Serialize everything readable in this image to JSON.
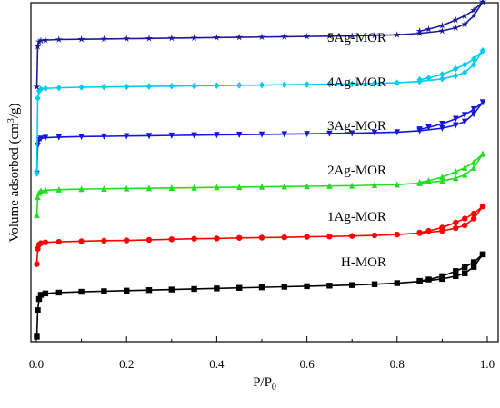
{
  "chart_data": {
    "type": "line",
    "title": "",
    "xlabel": "P/P",
    "xlabel_sub": "0",
    "ylabel": "Volume adsorbed (cm",
    "ylabel_sup": "3",
    "ylabel_tail": "/g)",
    "xlim": [
      0,
      1.0
    ],
    "xticks": [
      "0.0",
      "0.2",
      "0.4",
      "0.6",
      "0.8",
      "1.0"
    ],
    "yticks_shown": false,
    "grid": false,
    "series": [
      {
        "name": "H-MOR",
        "color": "#000000",
        "marker": "square",
        "adsorption": [
          [
            0.001,
            0.005
          ],
          [
            0.003,
            0.1
          ],
          [
            0.006,
            0.14
          ],
          [
            0.01,
            0.155
          ],
          [
            0.02,
            0.16
          ],
          [
            0.05,
            0.163
          ],
          [
            0.1,
            0.166
          ],
          [
            0.15,
            0.168
          ],
          [
            0.2,
            0.17
          ],
          [
            0.25,
            0.172
          ],
          [
            0.3,
            0.174
          ],
          [
            0.35,
            0.176
          ],
          [
            0.4,
            0.178
          ],
          [
            0.45,
            0.18
          ],
          [
            0.5,
            0.182
          ],
          [
            0.55,
            0.184
          ],
          [
            0.6,
            0.186
          ],
          [
            0.65,
            0.188
          ],
          [
            0.7,
            0.19
          ],
          [
            0.75,
            0.193
          ],
          [
            0.8,
            0.197
          ],
          [
            0.85,
            0.203
          ],
          [
            0.9,
            0.212
          ],
          [
            0.93,
            0.222
          ],
          [
            0.95,
            0.232
          ],
          [
            0.97,
            0.255
          ],
          [
            0.99,
            0.3
          ]
        ],
        "desorption": [
          [
            0.99,
            0.3
          ],
          [
            0.97,
            0.272
          ],
          [
            0.95,
            0.254
          ],
          [
            0.93,
            0.24
          ],
          [
            0.9,
            0.222
          ],
          [
            0.87,
            0.21
          ],
          [
            0.85,
            0.205
          ]
        ]
      },
      {
        "name": "1Ag-MOR",
        "color": "#ff0000",
        "marker": "circle",
        "adsorption": [
          [
            0.001,
            0.265
          ],
          [
            0.003,
            0.32
          ],
          [
            0.006,
            0.335
          ],
          [
            0.01,
            0.34
          ],
          [
            0.02,
            0.343
          ],
          [
            0.05,
            0.345
          ],
          [
            0.1,
            0.347
          ],
          [
            0.15,
            0.349
          ],
          [
            0.2,
            0.35
          ],
          [
            0.25,
            0.352
          ],
          [
            0.3,
            0.354
          ],
          [
            0.35,
            0.356
          ],
          [
            0.4,
            0.357
          ],
          [
            0.45,
            0.359
          ],
          [
            0.5,
            0.36
          ],
          [
            0.55,
            0.361
          ],
          [
            0.6,
            0.363
          ],
          [
            0.65,
            0.364
          ],
          [
            0.7,
            0.366
          ],
          [
            0.75,
            0.368
          ],
          [
            0.8,
            0.371
          ],
          [
            0.85,
            0.376
          ],
          [
            0.9,
            0.384
          ],
          [
            0.93,
            0.394
          ],
          [
            0.95,
            0.404
          ],
          [
            0.97,
            0.428
          ],
          [
            0.99,
            0.472
          ]
        ],
        "desorption": [
          [
            0.99,
            0.472
          ],
          [
            0.97,
            0.446
          ],
          [
            0.95,
            0.428
          ],
          [
            0.93,
            0.414
          ],
          [
            0.9,
            0.396
          ],
          [
            0.87,
            0.384
          ],
          [
            0.85,
            0.378
          ]
        ]
      },
      {
        "name": "2Ag-MOR",
        "color": "#22dd22",
        "marker": "triangle-up",
        "adsorption": [
          [
            0.001,
            0.44
          ],
          [
            0.003,
            0.505
          ],
          [
            0.006,
            0.52
          ],
          [
            0.01,
            0.527
          ],
          [
            0.02,
            0.53
          ],
          [
            0.05,
            0.532
          ],
          [
            0.1,
            0.534
          ],
          [
            0.15,
            0.535
          ],
          [
            0.2,
            0.536
          ],
          [
            0.25,
            0.537
          ],
          [
            0.3,
            0.538
          ],
          [
            0.35,
            0.539
          ],
          [
            0.4,
            0.54
          ],
          [
            0.45,
            0.541
          ],
          [
            0.5,
            0.542
          ],
          [
            0.55,
            0.543
          ],
          [
            0.6,
            0.544
          ],
          [
            0.65,
            0.545
          ],
          [
            0.7,
            0.546
          ],
          [
            0.75,
            0.548
          ],
          [
            0.8,
            0.55
          ],
          [
            0.85,
            0.555
          ],
          [
            0.9,
            0.563
          ],
          [
            0.93,
            0.573
          ],
          [
            0.95,
            0.585
          ],
          [
            0.97,
            0.61
          ],
          [
            0.99,
            0.66
          ]
        ],
        "desorption": [
          [
            0.99,
            0.66
          ],
          [
            0.97,
            0.63
          ],
          [
            0.95,
            0.61
          ],
          [
            0.93,
            0.596
          ],
          [
            0.9,
            0.577
          ],
          [
            0.87,
            0.564
          ],
          [
            0.85,
            0.558
          ]
        ]
      },
      {
        "name": "3Ag-MOR",
        "color": "#1515e0",
        "marker": "triangle-down",
        "adsorption": [
          [
            0.001,
            0.59
          ],
          [
            0.003,
            0.69
          ],
          [
            0.006,
            0.71
          ],
          [
            0.01,
            0.715
          ],
          [
            0.02,
            0.718
          ],
          [
            0.05,
            0.72
          ],
          [
            0.1,
            0.722
          ],
          [
            0.15,
            0.723
          ],
          [
            0.2,
            0.724
          ],
          [
            0.25,
            0.725
          ],
          [
            0.3,
            0.726
          ],
          [
            0.35,
            0.727
          ],
          [
            0.4,
            0.728
          ],
          [
            0.45,
            0.729
          ],
          [
            0.5,
            0.73
          ],
          [
            0.55,
            0.731
          ],
          [
            0.6,
            0.732
          ],
          [
            0.65,
            0.733
          ],
          [
            0.7,
            0.734
          ],
          [
            0.75,
            0.736
          ],
          [
            0.8,
            0.738
          ],
          [
            0.85,
            0.743
          ],
          [
            0.9,
            0.752
          ],
          [
            0.93,
            0.763
          ],
          [
            0.95,
            0.776
          ],
          [
            0.97,
            0.803
          ],
          [
            0.99,
            0.845
          ]
        ],
        "desorption": [
          [
            0.99,
            0.845
          ],
          [
            0.97,
            0.82
          ],
          [
            0.95,
            0.8
          ],
          [
            0.93,
            0.786
          ],
          [
            0.9,
            0.768
          ],
          [
            0.87,
            0.755
          ],
          [
            0.85,
            0.748
          ]
        ]
      },
      {
        "name": "4Ag-MOR",
        "color": "#00ccee",
        "marker": "diamond",
        "adsorption": [
          [
            0.001,
            0.59
          ],
          [
            0.003,
            0.86
          ],
          [
            0.006,
            0.885
          ],
          [
            0.01,
            0.892
          ],
          [
            0.02,
            0.895
          ],
          [
            0.05,
            0.897
          ],
          [
            0.1,
            0.899
          ],
          [
            0.15,
            0.9
          ],
          [
            0.2,
            0.901
          ],
          [
            0.25,
            0.902
          ],
          [
            0.3,
            0.903
          ],
          [
            0.35,
            0.904
          ],
          [
            0.4,
            0.905
          ],
          [
            0.45,
            0.906
          ],
          [
            0.5,
            0.907
          ],
          [
            0.55,
            0.908
          ],
          [
            0.6,
            0.909
          ],
          [
            0.65,
            0.91
          ],
          [
            0.7,
            0.911
          ],
          [
            0.75,
            0.913
          ],
          [
            0.8,
            0.915
          ],
          [
            0.85,
            0.92
          ],
          [
            0.9,
            0.929
          ],
          [
            0.93,
            0.94
          ],
          [
            0.95,
            0.952
          ],
          [
            0.97,
            0.98
          ],
          [
            0.99,
            1.03
          ]
        ],
        "desorption": [
          [
            0.99,
            1.03
          ],
          [
            0.97,
            1.0
          ],
          [
            0.95,
            0.98
          ],
          [
            0.93,
            0.965
          ],
          [
            0.9,
            0.945
          ],
          [
            0.87,
            0.932
          ],
          [
            0.85,
            0.926
          ]
        ]
      },
      {
        "name": "5Ag-MOR",
        "color": "#1a1a99",
        "marker": "star",
        "adsorption": [
          [
            0.001,
            0.9
          ],
          [
            0.003,
            1.045
          ],
          [
            0.006,
            1.062
          ],
          [
            0.01,
            1.066
          ],
          [
            0.02,
            1.068
          ],
          [
            0.05,
            1.07
          ],
          [
            0.1,
            1.071
          ],
          [
            0.15,
            1.072
          ],
          [
            0.2,
            1.073
          ],
          [
            0.25,
            1.074
          ],
          [
            0.3,
            1.075
          ],
          [
            0.35,
            1.076
          ],
          [
            0.4,
            1.077
          ],
          [
            0.45,
            1.078
          ],
          [
            0.5,
            1.079
          ],
          [
            0.55,
            1.08
          ],
          [
            0.6,
            1.081
          ],
          [
            0.65,
            1.082
          ],
          [
            0.7,
            1.083
          ],
          [
            0.75,
            1.085
          ],
          [
            0.8,
            1.087
          ],
          [
            0.85,
            1.092
          ],
          [
            0.9,
            1.101
          ],
          [
            0.93,
            1.112
          ],
          [
            0.95,
            1.125
          ],
          [
            0.97,
            1.155
          ],
          [
            0.99,
            1.205
          ]
        ],
        "desorption": [
          [
            0.99,
            1.205
          ],
          [
            0.97,
            1.175
          ],
          [
            0.95,
            1.155
          ],
          [
            0.93,
            1.14
          ],
          [
            0.9,
            1.12
          ],
          [
            0.87,
            1.107
          ],
          [
            0.85,
            1.1
          ]
        ]
      }
    ]
  }
}
